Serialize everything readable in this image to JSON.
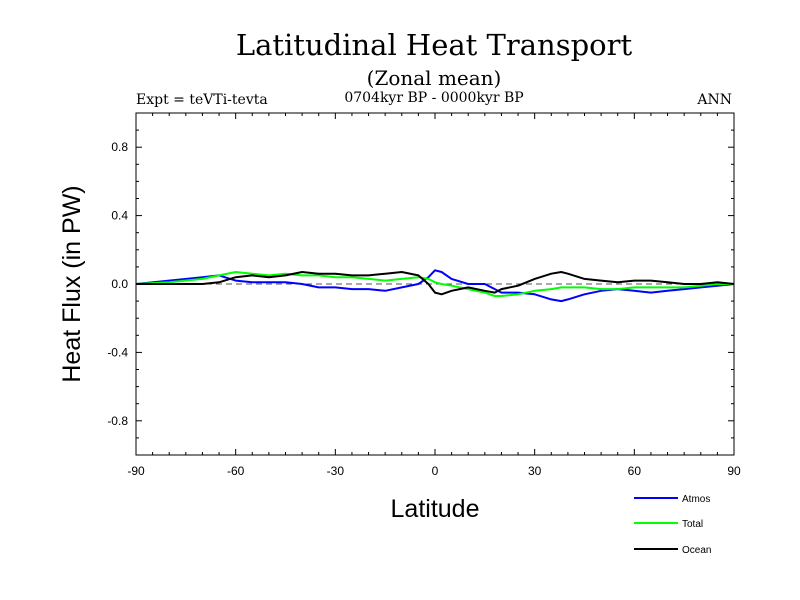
{
  "title": "Latitudinal Heat Transport",
  "subtitle": "(Zonal mean)",
  "expt_label": "Expt = teVTi-tevta",
  "period_label": "0704kyr BP - 0000kyr BP",
  "season_label": "ANN",
  "chart_data": {
    "type": "line",
    "title": "Latitudinal Heat Transport",
    "subtitle": "(Zonal mean)",
    "xlabel": "Latitude",
    "ylabel": "Heat Flux (in PW)",
    "xlim": [
      -90,
      90
    ],
    "ylim": [
      -1.0,
      1.0
    ],
    "xticks": [
      -90,
      -60,
      -30,
      0,
      30,
      60,
      90
    ],
    "yticks": [
      -0.8,
      -0.4,
      0.0,
      0.4,
      0.8
    ],
    "ytick_labels": [
      "-0.8",
      "-0.4",
      "0.0",
      "0.4",
      "0.8"
    ],
    "zero_line": true,
    "grid": false,
    "legend_position": "bottom-right",
    "x": [
      -90,
      -80,
      -70,
      -65,
      -60,
      -55,
      -50,
      -45,
      -40,
      -35,
      -30,
      -25,
      -20,
      -15,
      -10,
      -5,
      -2,
      0,
      2,
      5,
      10,
      15,
      18,
      20,
      25,
      30,
      35,
      38,
      40,
      45,
      50,
      55,
      60,
      65,
      70,
      75,
      80,
      85,
      90
    ],
    "series": [
      {
        "name": "Atmos",
        "color": "#0000ff",
        "values": [
          0.0,
          0.02,
          0.04,
          0.05,
          0.02,
          0.01,
          0.01,
          0.01,
          0.0,
          -0.02,
          -0.02,
          -0.03,
          -0.03,
          -0.04,
          -0.02,
          0.0,
          0.04,
          0.08,
          0.07,
          0.03,
          0.0,
          0.0,
          -0.03,
          -0.05,
          -0.05,
          -0.06,
          -0.09,
          -0.1,
          -0.09,
          -0.06,
          -0.04,
          -0.03,
          -0.04,
          -0.05,
          -0.04,
          -0.03,
          -0.02,
          -0.01,
          0.0
        ]
      },
      {
        "name": "Total",
        "color": "#00ff00",
        "values": [
          0.0,
          0.01,
          0.03,
          0.05,
          0.07,
          0.06,
          0.05,
          0.06,
          0.05,
          0.05,
          0.04,
          0.04,
          0.03,
          0.02,
          0.03,
          0.04,
          0.03,
          0.01,
          0.0,
          -0.01,
          -0.03,
          -0.05,
          -0.07,
          -0.07,
          -0.06,
          -0.04,
          -0.03,
          -0.02,
          -0.02,
          -0.02,
          -0.03,
          -0.03,
          -0.02,
          -0.02,
          -0.02,
          -0.02,
          -0.01,
          0.0,
          0.0
        ]
      },
      {
        "name": "Ocean",
        "color": "#000000",
        "values": [
          0.0,
          0.0,
          0.0,
          0.01,
          0.04,
          0.05,
          0.04,
          0.05,
          0.07,
          0.06,
          0.06,
          0.05,
          0.05,
          0.06,
          0.07,
          0.05,
          0.0,
          -0.05,
          -0.06,
          -0.04,
          -0.02,
          -0.04,
          -0.05,
          -0.03,
          -0.01,
          0.03,
          0.06,
          0.07,
          0.06,
          0.03,
          0.02,
          0.01,
          0.02,
          0.02,
          0.01,
          0.0,
          0.0,
          0.01,
          0.0
        ]
      }
    ]
  }
}
